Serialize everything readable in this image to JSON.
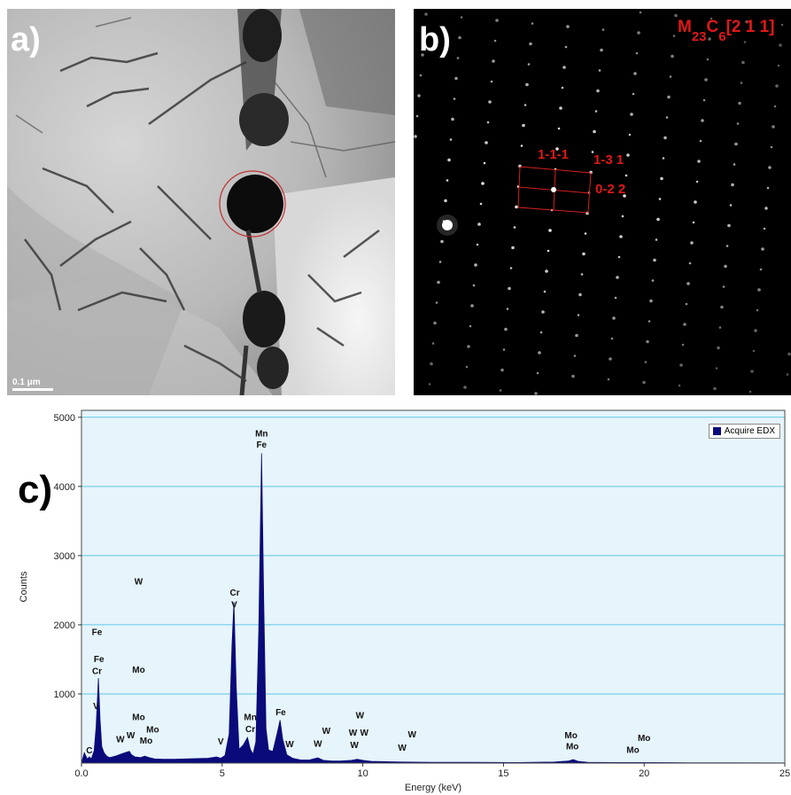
{
  "panel_a": {
    "letter": "a)",
    "scale_bar": "0.1 μm"
  },
  "panel_b": {
    "letter": "b)",
    "phase_main": "M",
    "phase_sub1": "23",
    "phase_mid": "C",
    "phase_sub2": "6",
    "zone_axis": "[2 1 1]",
    "spot_labels": [
      "1-1-1",
      "1-3 1",
      "0-2 2"
    ]
  },
  "chart_data": {
    "type": "area",
    "title": "",
    "panel_letter": "c)",
    "xlabel": "Energy (keV)",
    "ylabel": "Counts",
    "xlim": [
      0,
      25
    ],
    "ylim": [
      0,
      5100
    ],
    "xticks": [
      0.0,
      5,
      10,
      15,
      20,
      25
    ],
    "xtick_labels": [
      "0.0",
      "5",
      "10",
      "15",
      "20",
      "25"
    ],
    "yticks": [
      1000,
      2000,
      3000,
      4000,
      5000
    ],
    "ytick_labels": [
      "1000",
      "2000",
      "3000",
      "4000",
      "5000"
    ],
    "grid": true,
    "legend_position": "top-right",
    "series": [
      {
        "name": "Acquire EDX",
        "color": "#0a0a7a",
        "x": [
          0.0,
          0.1,
          0.2,
          0.28,
          0.35,
          0.45,
          0.52,
          0.6,
          0.66,
          0.72,
          0.8,
          0.9,
          1.0,
          1.2,
          1.4,
          1.55,
          1.7,
          1.78,
          1.9,
          2.1,
          2.25,
          2.4,
          2.6,
          2.9,
          3.3,
          3.7,
          4.1,
          4.5,
          4.8,
          4.95,
          5.1,
          5.25,
          5.35,
          5.42,
          5.5,
          5.6,
          5.75,
          5.9,
          6.0,
          6.1,
          6.2,
          6.3,
          6.4,
          6.48,
          6.56,
          6.65,
          6.8,
          6.95,
          7.06,
          7.15,
          7.3,
          7.5,
          7.8,
          8.1,
          8.4,
          8.6,
          8.9,
          9.2,
          9.6,
          9.8,
          10.0,
          10.3,
          10.8,
          11.4,
          12.5,
          14.0,
          15.5,
          16.8,
          17.3,
          17.48,
          17.65,
          18.0,
          19.0,
          19.6,
          20.0,
          21.5,
          23.0,
          25.0
        ],
        "y": [
          0,
          150,
          60,
          90,
          60,
          180,
          520,
          1230,
          620,
          240,
          150,
          100,
          80,
          100,
          130,
          150,
          170,
          120,
          90,
          80,
          100,
          80,
          60,
          55,
          55,
          60,
          65,
          70,
          90,
          70,
          110,
          420,
          1700,
          2330,
          1100,
          200,
          260,
          370,
          200,
          130,
          310,
          1900,
          4480,
          2300,
          500,
          190,
          170,
          420,
          620,
          350,
          120,
          70,
          45,
          45,
          75,
          40,
          30,
          30,
          40,
          55,
          40,
          25,
          20,
          15,
          12,
          10,
          8,
          15,
          30,
          50,
          25,
          10,
          8,
          8,
          8,
          5,
          5,
          3
        ]
      }
    ],
    "annotations": [
      {
        "text": "C",
        "x": 0.28,
        "y": 140
      },
      {
        "text": "V",
        "x": 0.52,
        "y": 780
      },
      {
        "text": "Cr",
        "x": 0.55,
        "y": 1290
      },
      {
        "text": "Fe",
        "x": 0.62,
        "y": 1460
      },
      {
        "text": "Fe",
        "x": 0.55,
        "y": 1850
      },
      {
        "text": "W",
        "x": 1.38,
        "y": 300
      },
      {
        "text": "W",
        "x": 1.75,
        "y": 360
      },
      {
        "text": "W",
        "x": 2.03,
        "y": 2580
      },
      {
        "text": "Mo",
        "x": 2.03,
        "y": 1310
      },
      {
        "text": "Mo",
        "x": 2.03,
        "y": 620
      },
      {
        "text": "Mo",
        "x": 2.3,
        "y": 280
      },
      {
        "text": "Mo",
        "x": 2.53,
        "y": 440
      },
      {
        "text": "V",
        "x": 4.95,
        "y": 270
      },
      {
        "text": "V",
        "x": 5.43,
        "y": 2250
      },
      {
        "text": "Cr",
        "x": 5.45,
        "y": 2420
      },
      {
        "text": "Cr",
        "x": 6.0,
        "y": 450
      },
      {
        "text": "Mn",
        "x": 6.0,
        "y": 620
      },
      {
        "text": "Fe",
        "x": 6.4,
        "y": 4560
      },
      {
        "text": "Mn",
        "x": 6.4,
        "y": 4720
      },
      {
        "text": "Fe",
        "x": 7.08,
        "y": 690
      },
      {
        "text": "W",
        "x": 7.4,
        "y": 230
      },
      {
        "text": "W",
        "x": 8.4,
        "y": 240
      },
      {
        "text": "W",
        "x": 8.7,
        "y": 420
      },
      {
        "text": "W",
        "x": 9.7,
        "y": 220
      },
      {
        "text": "W",
        "x": 9.65,
        "y": 400
      },
      {
        "text": "W",
        "x": 10.05,
        "y": 400
      },
      {
        "text": "W",
        "x": 9.9,
        "y": 650
      },
      {
        "text": "W",
        "x": 11.4,
        "y": 180
      },
      {
        "text": "W",
        "x": 11.75,
        "y": 370
      },
      {
        "text": "Mo",
        "x": 17.45,
        "y": 200
      },
      {
        "text": "Mo",
        "x": 17.4,
        "y": 360
      },
      {
        "text": "Mo",
        "x": 19.6,
        "y": 150
      },
      {
        "text": "Mo",
        "x": 20.0,
        "y": 320
      }
    ]
  }
}
